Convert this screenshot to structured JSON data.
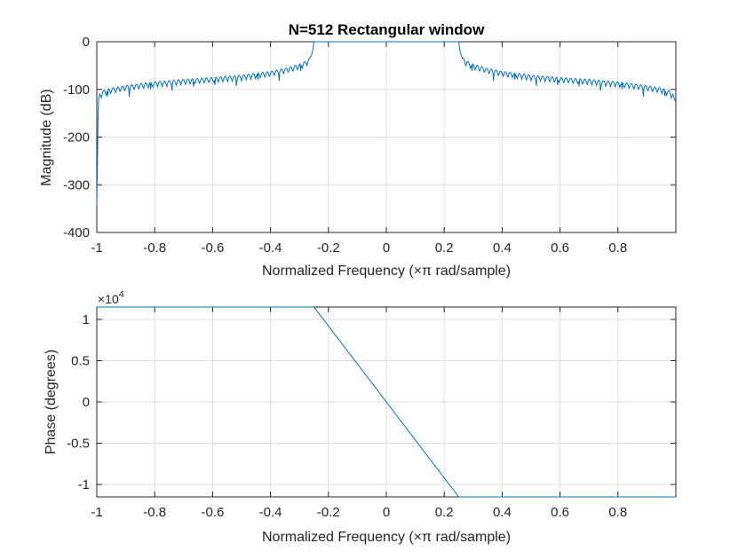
{
  "chart_data": [
    {
      "type": "line",
      "title": "N=512 Rectangular window",
      "xlabel": "Normalized Frequency  (×π rad/sample)",
      "ylabel": "Magnitude (dB)",
      "xlim": [
        -1,
        1
      ],
      "ylim": [
        -400,
        0
      ],
      "xticks": [
        -1,
        -0.8,
        -0.6,
        -0.4,
        -0.2,
        0,
        0.2,
        0.4,
        0.6,
        0.8
      ],
      "xticklabels": [
        "-1",
        "-0.8",
        "-0.6",
        "-0.4",
        "-0.2",
        "0",
        "0.2",
        "0.4",
        "0.6",
        "0.8"
      ],
      "yticks": [
        0,
        -100,
        -200,
        -300,
        -400
      ],
      "yticklabels": [
        "0",
        "-100",
        "-200",
        "-300",
        "-400"
      ],
      "grid": true,
      "line_color": "#0072BD",
      "x": [
        -1,
        -0.995,
        -0.99,
        -0.98,
        -0.95,
        -0.9,
        -0.85,
        -0.8,
        -0.7,
        -0.6,
        -0.5,
        -0.45,
        -0.4,
        -0.35,
        -0.3,
        -0.28,
        -0.27,
        -0.26,
        -0.255,
        -0.25,
        0,
        0.25,
        0.255,
        0.26,
        0.27,
        0.28,
        0.3,
        0.35,
        0.4,
        0.45,
        0.5,
        0.6,
        0.7,
        0.8,
        0.85,
        0.9,
        0.95,
        0.98,
        0.99,
        0.998
      ],
      "y": [
        -345,
        -125,
        -110,
        -103,
        -97,
        -92,
        -88,
        -84,
        -79,
        -75,
        -70,
        -66,
        -62,
        -56,
        -47,
        -41,
        -37,
        -30,
        -22,
        0,
        0,
        0,
        -22,
        -30,
        -37,
        -41,
        -47,
        -56,
        -62,
        -66,
        -70,
        -75,
        -79,
        -84,
        -88,
        -92,
        -97,
        -103,
        -110,
        -125
      ]
    },
    {
      "type": "line",
      "title": "",
      "xlabel": "Normalized Frequency  (×π rad/sample)",
      "ylabel": "Phase (degrees)",
      "exponent_label": "×10",
      "exponent_power": "4",
      "xlim": [
        -1,
        1
      ],
      "ylim": [
        -1.15,
        1.15
      ],
      "xticks": [
        -1,
        -0.8,
        -0.6,
        -0.4,
        -0.2,
        0,
        0.2,
        0.4,
        0.6,
        0.8
      ],
      "xticklabels": [
        "-1",
        "-0.8",
        "-0.6",
        "-0.4",
        "-0.2",
        "0",
        "0.2",
        "0.4",
        "0.6",
        "0.8"
      ],
      "yticks": [
        1,
        0.5,
        0,
        -0.5,
        -1
      ],
      "yticklabels": [
        "1",
        "0.5",
        "0",
        "-0.5",
        "-1"
      ],
      "grid": true,
      "line_color": "#0072BD",
      "x": [
        -1,
        -0.25,
        0.25,
        0.998
      ],
      "y": [
        1.15,
        1.15,
        -1.15,
        -1.15
      ]
    }
  ]
}
